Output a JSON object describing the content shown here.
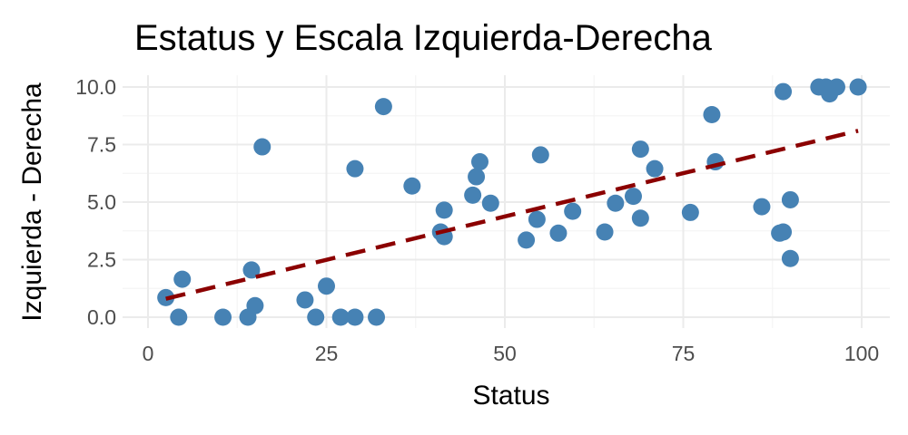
{
  "chart_data": {
    "type": "scatter",
    "title": "Estatus y Escala Izquierda-Derecha",
    "xlabel": "Status",
    "ylabel": "Izquierda - Derecha",
    "xlim": [
      0,
      100
    ],
    "ylim": [
      0,
      10
    ],
    "x_ticks": [
      0,
      25,
      50,
      75,
      100
    ],
    "x_tick_labels": [
      "0",
      "25",
      "50",
      "75",
      "100"
    ],
    "y_ticks": [
      0,
      2.5,
      5,
      7.5,
      10
    ],
    "y_tick_labels": [
      "0.0",
      "2.5",
      "5.0",
      "7.5",
      "10.0"
    ],
    "grid": true,
    "point_color": "#4682b4",
    "trend_color": "#8b0000",
    "points": [
      {
        "x": 2.5,
        "y": 0.85
      },
      {
        "x": 4.3,
        "y": 0.0
      },
      {
        "x": 4.8,
        "y": 1.65
      },
      {
        "x": 10.5,
        "y": 0.0
      },
      {
        "x": 14.0,
        "y": 0.0
      },
      {
        "x": 14.5,
        "y": 2.05
      },
      {
        "x": 15.0,
        "y": 0.5
      },
      {
        "x": 16.0,
        "y": 7.4
      },
      {
        "x": 22.0,
        "y": 0.75
      },
      {
        "x": 23.5,
        "y": 0.0
      },
      {
        "x": 25.0,
        "y": 1.35
      },
      {
        "x": 27.0,
        "y": 0.0
      },
      {
        "x": 29.0,
        "y": 6.45
      },
      {
        "x": 29.0,
        "y": 0.0
      },
      {
        "x": 32.0,
        "y": 0.0
      },
      {
        "x": 33.0,
        "y": 9.15
      },
      {
        "x": 37.0,
        "y": 5.7
      },
      {
        "x": 41.0,
        "y": 3.7
      },
      {
        "x": 41.5,
        "y": 3.5
      },
      {
        "x": 41.5,
        "y": 4.65
      },
      {
        "x": 45.5,
        "y": 5.3
      },
      {
        "x": 46.0,
        "y": 6.1
      },
      {
        "x": 46.5,
        "y": 6.75
      },
      {
        "x": 48.0,
        "y": 4.95
      },
      {
        "x": 53.0,
        "y": 3.35
      },
      {
        "x": 54.5,
        "y": 4.25
      },
      {
        "x": 55.0,
        "y": 7.05
      },
      {
        "x": 57.5,
        "y": 3.65
      },
      {
        "x": 59.5,
        "y": 4.6
      },
      {
        "x": 64.0,
        "y": 3.7
      },
      {
        "x": 65.5,
        "y": 4.95
      },
      {
        "x": 68.0,
        "y": 5.25
      },
      {
        "x": 69.0,
        "y": 7.3
      },
      {
        "x": 69.0,
        "y": 4.3
      },
      {
        "x": 71.0,
        "y": 6.45
      },
      {
        "x": 76.0,
        "y": 4.55
      },
      {
        "x": 79.0,
        "y": 8.8
      },
      {
        "x": 79.5,
        "y": 6.75
      },
      {
        "x": 86.0,
        "y": 4.8
      },
      {
        "x": 88.5,
        "y": 3.65
      },
      {
        "x": 89.0,
        "y": 3.7
      },
      {
        "x": 89.0,
        "y": 9.8
      },
      {
        "x": 90.0,
        "y": 5.1
      },
      {
        "x": 90.0,
        "y": 2.55
      },
      {
        "x": 94.0,
        "y": 10.0
      },
      {
        "x": 95.0,
        "y": 10.0
      },
      {
        "x": 95.5,
        "y": 9.7
      },
      {
        "x": 96.5,
        "y": 10.0
      },
      {
        "x": 99.5,
        "y": 10.0
      }
    ],
    "trend_line": {
      "style": "dashed",
      "x": [
        2.5,
        99.5
      ],
      "y": [
        0.8,
        8.1
      ]
    }
  }
}
